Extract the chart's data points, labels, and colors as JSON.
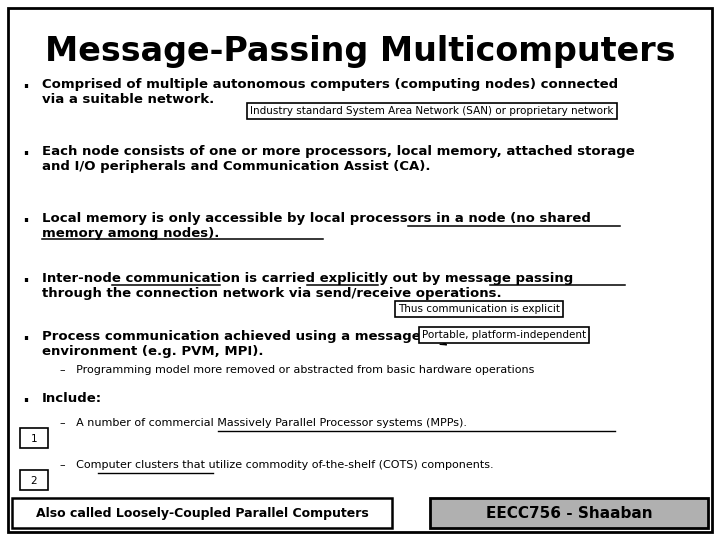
{
  "title": "Message-Passing Multicomputers",
  "bg_color": "#ffffff",
  "border_color": "#000000",
  "text_color": "#000000",
  "title_fontsize": 24,
  "body_fontsize": 9.5,
  "note1": "Industry standard System Area Network (SAN) or proprietary network",
  "note2": "Thus communication is explicit",
  "note3": "Portable, platform-independent",
  "sub1": "–   Programming model more removed or abstracted from basic hardware operations",
  "bullet6": "Include:",
  "footer_left": "Also called Loosely-Coupled Parallel Computers",
  "footer_right": "EECC756 - Shaaban",
  "fig_width": 7.2,
  "fig_height": 5.4,
  "dpi": 100
}
